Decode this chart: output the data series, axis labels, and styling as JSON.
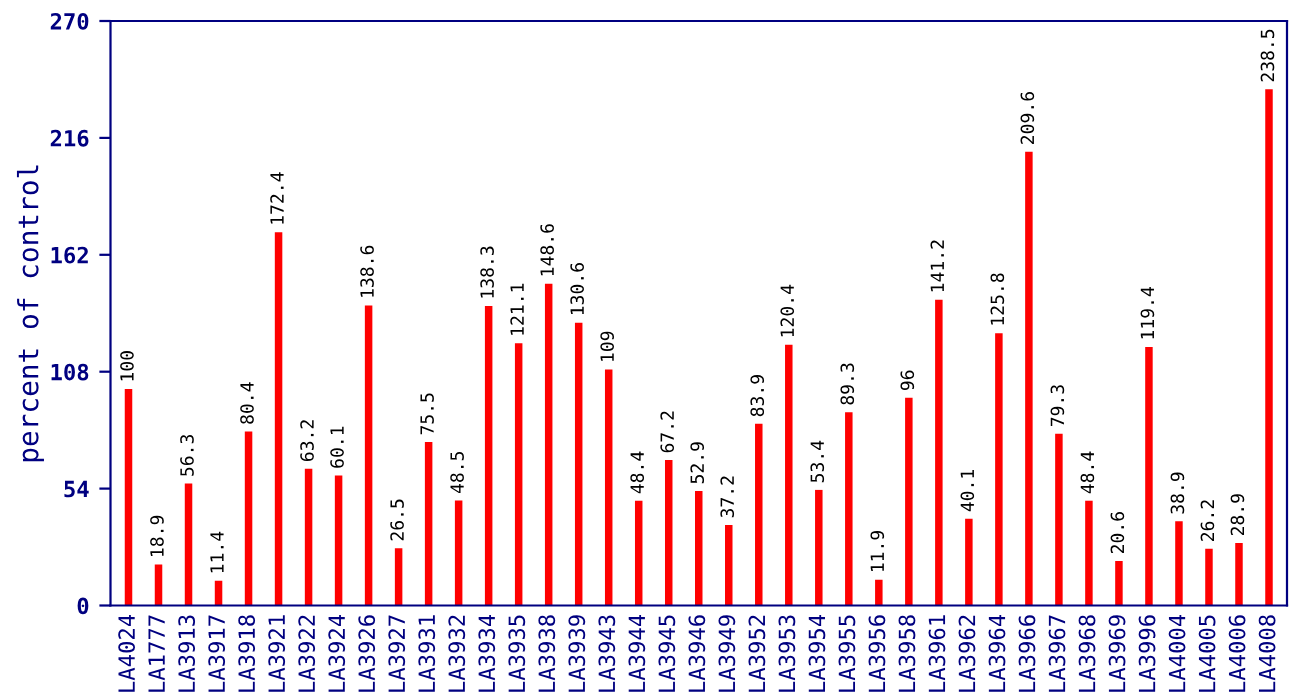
{
  "chart_data": {
    "type": "bar",
    "ylabel": "percent of control",
    "categories": [
      "LA4024",
      "LA1777",
      "LA3913",
      "LA3917",
      "LA3918",
      "LA3921",
      "LA3922",
      "LA3924",
      "LA3926",
      "LA3927",
      "LA3931",
      "LA3932",
      "LA3934",
      "LA3935",
      "LA3938",
      "LA3939",
      "LA3943",
      "LA3944",
      "LA3945",
      "LA3946",
      "LA3949",
      "LA3952",
      "LA3953",
      "LA3954",
      "LA3955",
      "LA3956",
      "LA3958",
      "LA3961",
      "LA3962",
      "LA3964",
      "LA3966",
      "LA3967",
      "LA3968",
      "LA3969",
      "LA3996",
      "LA4004",
      "LA4005",
      "LA4006",
      "LA4008"
    ],
    "values": [
      100,
      18.9,
      56.3,
      11.4,
      80.4,
      172.4,
      63.2,
      60.1,
      138.6,
      26.5,
      75.5,
      48.5,
      138.3,
      121.1,
      148.6,
      130.6,
      109,
      48.4,
      67.2,
      52.9,
      37.2,
      83.9,
      120.4,
      53.4,
      89.3,
      11.9,
      96,
      141.2,
      40.1,
      125.8,
      209.6,
      79.3,
      48.4,
      20.6,
      119.4,
      38.9,
      26.2,
      28.9,
      238.5
    ],
    "color": "#ff0000",
    "ylim": [
      0,
      270
    ],
    "yticks": [
      0,
      54,
      108,
      162,
      216,
      270
    ],
    "grid": false,
    "data_labels": true
  }
}
